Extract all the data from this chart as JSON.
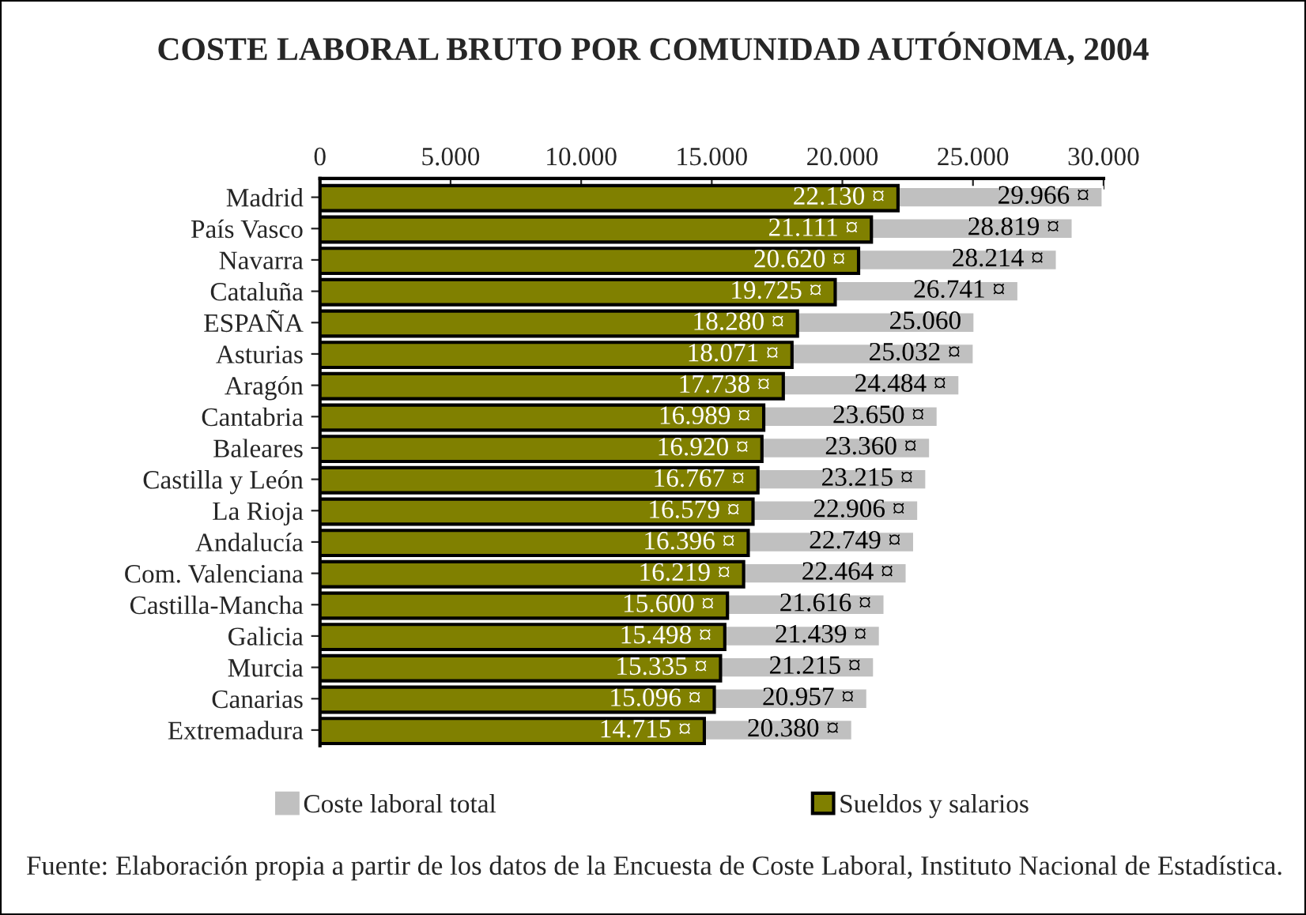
{
  "chart_data": {
    "type": "bar",
    "orientation": "horizontal",
    "title": "COSTE LABORAL BRUTO POR COMUNIDAD AUTÓNOMA, 2004",
    "categories": [
      "Madrid",
      "País Vasco",
      "Navarra",
      "Cataluña",
      "ESPAÑA",
      "Asturias",
      "Aragón",
      "Cantabria",
      "Baleares",
      "Castilla y León",
      "La Rioja",
      "Andalucía",
      "Com. Valenciana",
      "Castilla-Mancha",
      "Galicia",
      "Murcia",
      "Canarias",
      "Extremadura"
    ],
    "series": [
      {
        "name": "Coste laboral total",
        "color": "#c0c0c0",
        "values": [
          29966,
          28819,
          28214,
          26741,
          25060,
          25032,
          24484,
          23650,
          23360,
          23215,
          22906,
          22749,
          22464,
          21616,
          21439,
          21215,
          20957,
          20380
        ],
        "value_labels": [
          "29.966 ¤",
          "28.819 ¤",
          "28.214 ¤",
          "26.741 ¤",
          "25.060",
          "25.032 ¤",
          "24.484 ¤",
          "23.650 ¤",
          "23.360 ¤",
          "23.215 ¤",
          "22.906 ¤",
          "22.749 ¤",
          "22.464 ¤",
          "21.616 ¤",
          "21.439 ¤",
          "21.215 ¤",
          "20.957 ¤",
          "20.380 ¤"
        ]
      },
      {
        "name": "Sueldos y salarios",
        "color": "#808000",
        "values": [
          22130,
          21111,
          20620,
          19725,
          18280,
          18071,
          17738,
          16989,
          16920,
          16767,
          16579,
          16396,
          16219,
          15600,
          15498,
          15335,
          15096,
          14715
        ],
        "value_labels": [
          "22.130 ¤",
          "21.111 ¤",
          "20.620 ¤",
          "19.725 ¤",
          "18.280 ¤",
          "18.071 ¤",
          "17.738 ¤",
          "16.989 ¤",
          "16.920 ¤",
          "16.767 ¤",
          "16.579 ¤",
          "16.396 ¤",
          "16.219 ¤",
          "15.600 ¤",
          "15.498 ¤",
          "15.335 ¤",
          "15.096 ¤",
          "14.715 ¤"
        ]
      }
    ],
    "xlim": [
      0,
      30000
    ],
    "xticks": [
      0,
      {
        "value": 5000,
        "label": "5.000"
      },
      {
        "value": 10000,
        "label": "10.000"
      },
      {
        "value": 15000,
        "label": "15.000"
      },
      {
        "value": 20000,
        "label": "20.000"
      },
      {
        "value": 25000,
        "label": "25.000"
      },
      {
        "value": 30000,
        "label": "30.000"
      }
    ],
    "grid": false,
    "legend": "bottom",
    "annotations": [
      "Fuente: Elaboración propia a partir de los datos de la Encuesta de Coste Laboral, Instituto Nacional de Estadística."
    ]
  }
}
